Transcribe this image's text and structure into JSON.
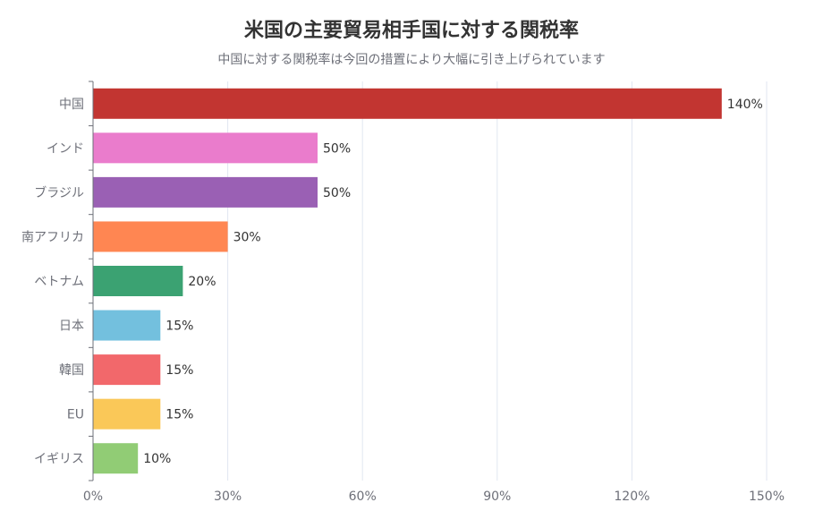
{
  "chart_data": {
    "type": "bar",
    "orientation": "horizontal",
    "title": "米国の主要貿易相手国に対する関税率",
    "subtitle": "中国に対する関税率は今回の措置により大幅に引き上げられています",
    "categories": [
      "中国",
      "インド",
      "ブラジル",
      "南アフリカ",
      "ベトナム",
      "日本",
      "韓国",
      "EU",
      "イギリス"
    ],
    "values": [
      140,
      50,
      50,
      30,
      20,
      15,
      15,
      15,
      10
    ],
    "data_labels": [
      "140%",
      "50%",
      "50%",
      "30%",
      "20%",
      "15%",
      "15%",
      "15%",
      "10%"
    ],
    "colors": [
      "#c23531",
      "#ea7ccc",
      "#9a60b4",
      "#ff8652",
      "#3ba272",
      "#73c0de",
      "#f2686b",
      "#fac858",
      "#91cc75"
    ],
    "xlim": [
      0,
      150
    ],
    "xticks": [
      0,
      30,
      60,
      90,
      120,
      150
    ],
    "xtick_labels": [
      "0%",
      "30%",
      "60%",
      "90%",
      "120%",
      "150%"
    ],
    "xlabel": "",
    "ylabel": "",
    "grid": true
  }
}
